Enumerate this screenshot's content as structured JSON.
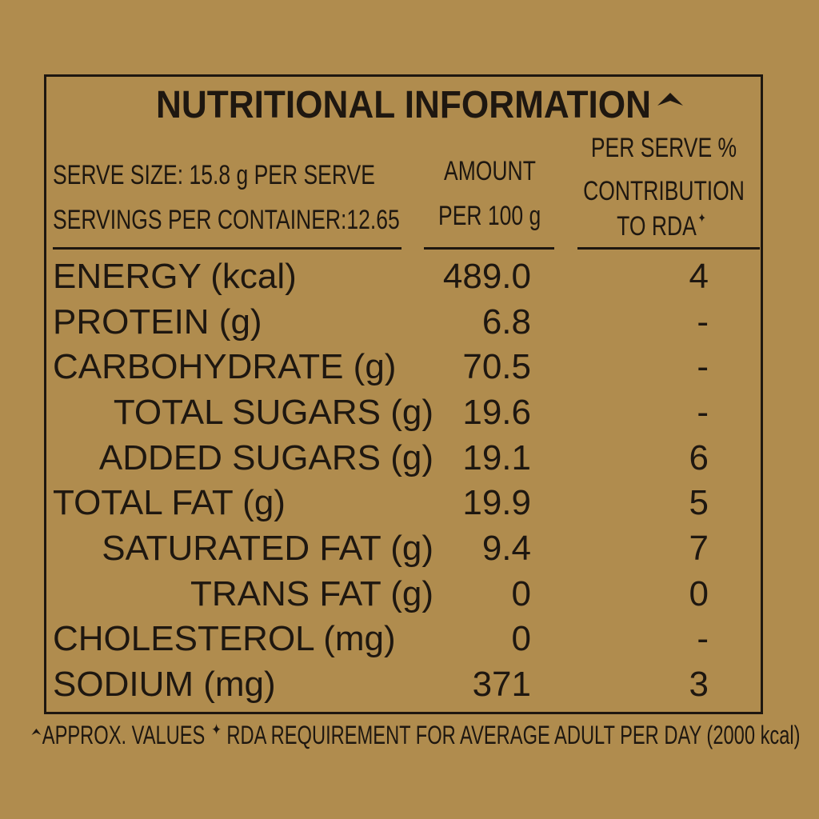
{
  "title": "NUTRITIONAL INFORMATION",
  "serve_size": "SERVE SIZE: 15.8 g PER SERVE",
  "servings_per_container": "SERVINGS PER CONTAINER:12.65",
  "amount_header": {
    "line1": "AMOUNT",
    "line2": "PER 100 g"
  },
  "rda_header": {
    "line1": "PER SERVE %",
    "line2": "CONTRIBUTION",
    "line3": "TO RDA"
  },
  "rows": [
    {
      "nutrient": "ENERGY (kcal)",
      "amount": "489.0",
      "rda": "4"
    },
    {
      "nutrient": "PROTEIN (g)",
      "amount": "6.8",
      "rda": "-"
    },
    {
      "nutrient": "CARBOHYDRATE (g)",
      "amount": "70.5",
      "rda": "-"
    },
    {
      "nutrient": "TOTAL SUGARS (g)",
      "amount": "19.6",
      "rda": "-"
    },
    {
      "nutrient": "ADDED SUGARS (g)",
      "amount": "19.1",
      "rda": "6"
    },
    {
      "nutrient": "TOTAL FAT (g)",
      "amount": "19.9",
      "rda": "5"
    },
    {
      "nutrient": "SATURATED FAT (g)",
      "amount": "9.4",
      "rda": "7"
    },
    {
      "nutrient": "TRANS FAT (g)",
      "amount": "0",
      "rda": "0"
    },
    {
      "nutrient": "CHOLESTEROL (mg)",
      "amount": "0",
      "rda": "-"
    },
    {
      "nutrient": "SODIUM (mg)",
      "amount": "371",
      "rda": "3"
    }
  ],
  "footnote": {
    "approx": "APPROX. VALUES",
    "rda": "RDA REQUIREMENT FOR AVERAGE ADULT PER DAY (2000 kcal)"
  },
  "colors": {
    "background": "#b08c4e",
    "ink": "#1e1710"
  }
}
